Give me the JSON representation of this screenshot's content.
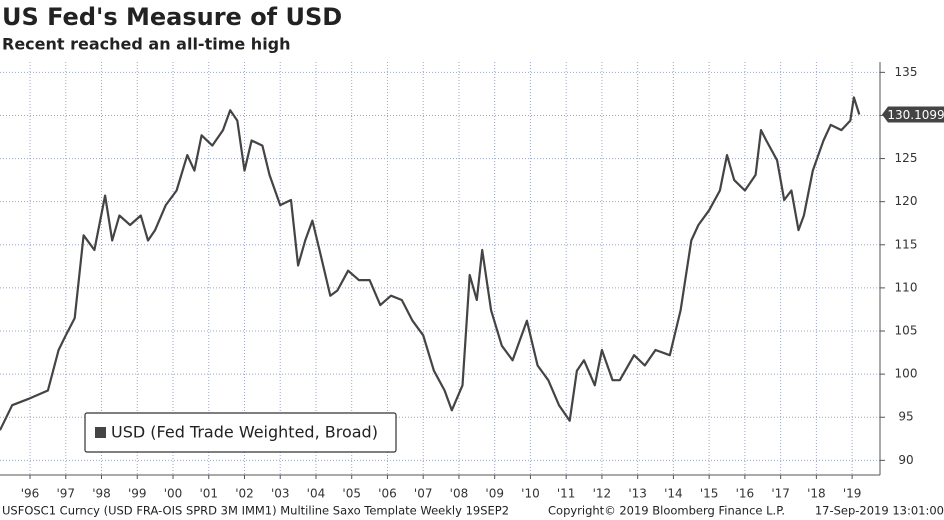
{
  "chart_data": {
    "type": "line",
    "title": "US Fed's Measure of USD",
    "subtitle": "Recent reached an all-time high",
    "series": [
      {
        "name": "USD (Fed Trade Weighted, Broad)",
        "color": "#444444",
        "x": [
          1995.66,
          1996.0,
          1996.5,
          1997.0,
          1997.3,
          1997.5,
          1997.75,
          1998.0,
          1998.3,
          1998.6,
          1998.8,
          1999.0,
          1999.3,
          1999.6,
          1999.8,
          2000.0,
          2000.3,
          2000.6,
          2000.9,
          2001.1,
          2001.3,
          2001.6,
          2001.9,
          2002.1,
          2002.3,
          2002.5,
          2002.7,
          2003.0,
          2003.2,
          2003.5,
          2003.8,
          2004.0,
          2004.2,
          2004.4,
          2004.6,
          2004.9,
          2005.1,
          2005.4,
          2005.7,
          2006.0,
          2006.3,
          2006.6,
          2006.9,
          2007.2,
          2007.5,
          2007.8,
          2008.1,
          2008.3,
          2008.6,
          2008.8,
          2009.0,
          2009.15,
          2009.4,
          2009.7,
          2010.0,
          2010.4,
          2010.7,
          2011.0,
          2011.3,
          2011.6,
          2011.8,
          2012.0,
          2012.3,
          2012.5,
          2012.8,
          2013.0,
          2013.4,
          2013.7,
          2014.0,
          2014.4,
          2014.7,
          2015.0,
          2015.2,
          2015.5,
          2015.8,
          2016.0,
          2016.2,
          2016.5,
          2016.8,
          2016.95,
          2017.1,
          2017.4,
          2017.6,
          2017.8,
          2018.0,
          2018.15,
          2018.4,
          2018.7,
          2018.9,
          2019.2,
          2019.45,
          2019.55,
          2019.7
        ],
        "values": [
          93.5,
          96.4,
          97.2,
          98.1,
          102.8,
          104.5,
          106.5,
          116.1,
          114.4,
          120.7,
          115.5,
          118.4,
          117.3,
          118.4,
          115.5,
          116.7,
          119.6,
          121.3,
          125.4,
          123.6,
          127.7,
          126.5,
          128.3,
          130.6,
          129.4,
          123.6,
          127.1,
          126.5,
          123.1,
          119.6,
          120.2,
          112.6,
          115.5,
          117.8,
          114.4,
          109.1,
          109.7,
          112.0,
          110.9,
          110.9,
          108.0,
          109.1,
          108.6,
          106.2,
          104.5,
          100.4,
          98.1,
          95.8,
          98.7,
          111.5,
          108.6,
          114.4,
          107.4,
          103.3,
          101.6,
          106.2,
          101.0,
          99.3,
          96.4,
          94.6,
          100.4,
          101.6,
          98.7,
          102.8,
          99.3,
          99.3,
          102.2,
          101.0,
          102.8,
          102.2,
          107.4,
          115.5,
          117.3,
          119.0,
          121.3,
          125.4,
          122.5,
          121.3,
          123.1,
          128.3,
          127.1,
          124.8,
          120.2,
          121.3,
          116.7,
          118.4,
          123.6,
          127.1,
          128.9,
          128.3,
          129.4,
          132.1,
          130.1099
        ]
      }
    ],
    "xlim": [
      1995.66,
      2020.28
    ],
    "xticks": [
      {
        "value": 1996.5,
        "label": "'96"
      },
      {
        "value": 1997.5,
        "label": "'97"
      },
      {
        "value": 1998.5,
        "label": "'98"
      },
      {
        "value": 1999.5,
        "label": "'99"
      },
      {
        "value": 2000.5,
        "label": "'00"
      },
      {
        "value": 2001.5,
        "label": "'01"
      },
      {
        "value": 2002.5,
        "label": "'02"
      },
      {
        "value": 2003.5,
        "label": "'03"
      },
      {
        "value": 2004.5,
        "label": "'04"
      },
      {
        "value": 2005.5,
        "label": "'05"
      },
      {
        "value": 2006.5,
        "label": "'06"
      },
      {
        "value": 2007.5,
        "label": "'07"
      },
      {
        "value": 2008.5,
        "label": "'08"
      },
      {
        "value": 2009.5,
        "label": "'09"
      },
      {
        "value": 2010.5,
        "label": "'10"
      },
      {
        "value": 2011.5,
        "label": "'11"
      },
      {
        "value": 2012.5,
        "label": "'12"
      },
      {
        "value": 2013.5,
        "label": "'13"
      },
      {
        "value": 2014.5,
        "label": "'14"
      },
      {
        "value": 2015.5,
        "label": "'15"
      },
      {
        "value": 2016.5,
        "label": "'16"
      },
      {
        "value": 2017.5,
        "label": "'17"
      },
      {
        "value": 2018.5,
        "label": "'18"
      },
      {
        "value": 2019.5,
        "label": "'19"
      }
    ],
    "ylim": [
      88.3,
      136.2
    ],
    "yticks": [
      90,
      95,
      100,
      105,
      110,
      115,
      120,
      125,
      130,
      135
    ],
    "grid": true,
    "legend": "bottom-left",
    "footer": [
      "USFOSC1 Curncy (USD FRA-OIS SPRD 3M IMM1) Multiline Saxo Template  Weekly 19SEP2",
      "Copyright© 2019 Bloomberg Finance L.P.",
      "17-Sep-2019 13:01:00"
    ]
  }
}
